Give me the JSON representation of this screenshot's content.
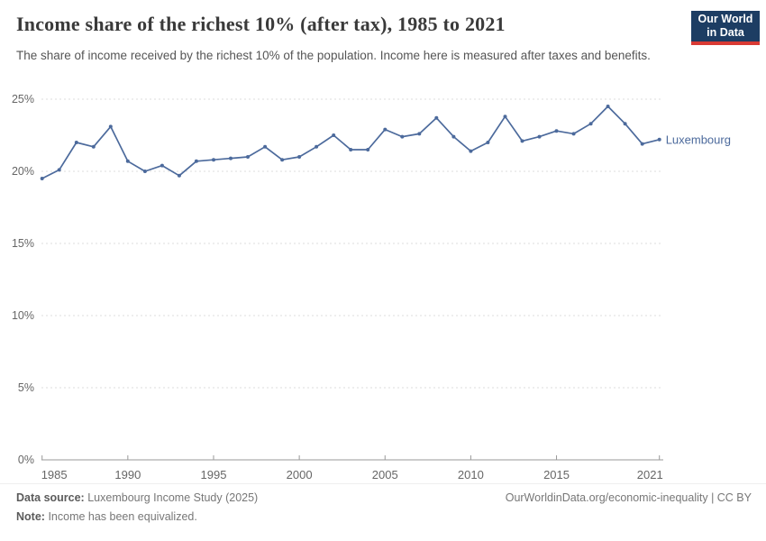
{
  "header": {
    "title": "Income share of the richest 10% (after tax), 1985 to 2021",
    "subtitle": "The share of income received by the richest 10% of the population. Income here is measured after taxes and benefits.",
    "logo_line1": "Our World",
    "logo_line2": "in Data"
  },
  "chart_data": {
    "type": "line",
    "title": "Income share of the richest 10% (after tax), 1985 to 2021",
    "xlabel": "",
    "ylabel": "",
    "x": [
      1985,
      1986,
      1987,
      1988,
      1989,
      1990,
      1991,
      1992,
      1993,
      1994,
      1995,
      1996,
      1997,
      1998,
      1999,
      2000,
      2001,
      2002,
      2003,
      2004,
      2005,
      2006,
      2007,
      2008,
      2009,
      2010,
      2011,
      2012,
      2013,
      2014,
      2015,
      2016,
      2017,
      2018,
      2019,
      2020,
      2021
    ],
    "series": [
      {
        "name": "Luxembourg",
        "color": "#4c6a9c",
        "values": [
          19.5,
          20.1,
          22.0,
          21.7,
          23.1,
          20.7,
          20.0,
          20.4,
          19.7,
          20.7,
          20.8,
          20.9,
          21.0,
          21.7,
          20.8,
          21.0,
          21.7,
          22.5,
          21.5,
          21.5,
          22.9,
          22.4,
          22.6,
          23.7,
          22.4,
          21.4,
          22.0,
          23.8,
          22.1,
          22.4,
          22.8,
          22.6,
          23.3,
          24.5,
          23.3,
          21.9,
          22.2
        ]
      }
    ],
    "ylim": [
      0,
      25
    ],
    "yticks": [
      0,
      5,
      10,
      15,
      20,
      25
    ],
    "ytick_suffix": "%",
    "xticks": [
      1985,
      1990,
      1995,
      2000,
      2005,
      2010,
      2015,
      2021
    ],
    "grid": "horizontal-dashed",
    "legend_position": "end-of-line-label"
  },
  "footer": {
    "source_label": "Data source:",
    "source_text": "Luxembourg Income Study (2025)",
    "note_label": "Note:",
    "note_text": "Income has been equivalized.",
    "rights": "OurWorldinData.org/economic-inequality | CC BY"
  },
  "colors": {
    "line": "#4c6a9c",
    "gridline": "#dcdcdc",
    "axis": "#999999",
    "tick_text": "#666666",
    "logo_bg": "#1d3d63",
    "logo_accent": "#d93a34"
  }
}
